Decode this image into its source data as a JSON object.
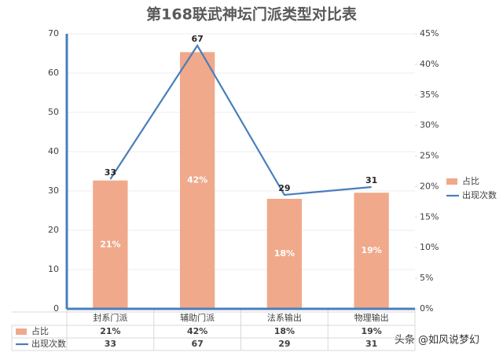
{
  "chart_data": {
    "type": "combo",
    "title": "第168联武神坛门派类型对比表",
    "categories": [
      "封系门派",
      "辅助门派",
      "法系输出",
      "物理输出"
    ],
    "series": [
      {
        "name": "占比",
        "type": "bar",
        "axis": "y2",
        "color": "#f0a98a",
        "values": [
          21,
          42,
          18,
          19
        ],
        "value_labels": [
          "21%",
          "42%",
          "18%",
          "19%"
        ]
      },
      {
        "name": "出现次数",
        "type": "line",
        "color": "#4a7ebb",
        "values": [
          33,
          67,
          29,
          31
        ]
      }
    ],
    "ylim": [
      0,
      70
    ],
    "yticks": [
      0,
      10,
      20,
      30,
      40,
      50,
      60,
      70
    ],
    "y2lim": [
      0,
      45
    ],
    "y2ticks": [
      {
        "value": 0,
        "label": "0%"
      },
      {
        "value": 5,
        "label": "5%"
      },
      {
        "value": 10,
        "label": "10%"
      },
      {
        "value": 15,
        "label": "15%"
      },
      {
        "value": 20,
        "label": "20%"
      },
      {
        "value": 25,
        "label": "25%"
      },
      {
        "value": 30,
        "label": "30%"
      },
      {
        "value": 35,
        "label": "35%"
      },
      {
        "value": 40,
        "label": "40%"
      },
      {
        "value": 45,
        "label": "45%"
      }
    ],
    "grid": true,
    "legend": "right",
    "watermark": "头条 @如风说梦幻"
  }
}
